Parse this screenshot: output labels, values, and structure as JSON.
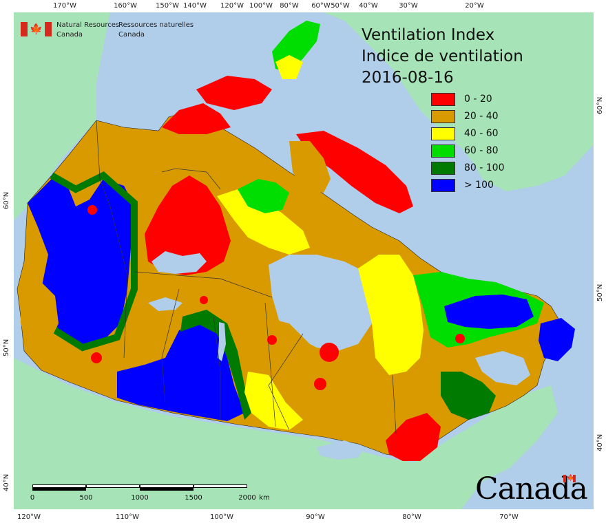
{
  "title": {
    "line_en": "Ventilation Index",
    "line_fr": "Indice de ventilation",
    "date": "2016-08-16"
  },
  "agency": {
    "name_en_1": "Natural Resources",
    "name_en_2": "Canada",
    "name_fr_1": "Ressources naturelles",
    "name_fr_2": "Canada"
  },
  "legend": [
    {
      "label": "0 - 20",
      "color": "#ff0000"
    },
    {
      "label": "20 - 40",
      "color": "#d99a00"
    },
    {
      "label": "40 - 60",
      "color": "#ffff00"
    },
    {
      "label": "60 - 80",
      "color": "#00dd00"
    },
    {
      "label": "80 - 100",
      "color": "#007a00"
    },
    {
      "label": "> 100",
      "color": "#0000ff"
    }
  ],
  "graticule": {
    "top_lon": [
      "170°W",
      "160°W",
      "150°W",
      "140°W",
      "120°W",
      "100°W",
      "80°W",
      "60°W",
      "50°W",
      "40°W",
      "30°W",
      "20°W"
    ],
    "bottom_lon": [
      "120°W",
      "110°W",
      "100°W",
      "90°W",
      "80°W",
      "70°W"
    ],
    "left_lat": [
      "60°N",
      "50°N",
      "40°N"
    ],
    "right_lat": [
      "60°N",
      "50°N",
      "40°N"
    ]
  },
  "scale_bar": {
    "labels": [
      "0",
      "500",
      "1000",
      "1500",
      "2000"
    ],
    "unit": "km"
  },
  "wordmark": "Canada",
  "colors": {
    "ocean": "#b0cdea",
    "land_foreign": "#a6e3b6",
    "lakes": "#b0cdea",
    "boundary": "#333333"
  }
}
